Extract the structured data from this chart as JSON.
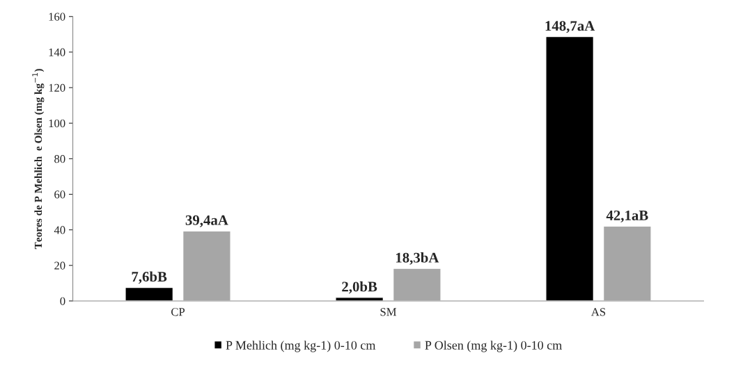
{
  "chart_data": {
    "type": "bar",
    "ylabel": "Teores de P Mehlich  e Olsen (mg kg$^{−1}$)",
    "categories": [
      "CP",
      "SM",
      "AS"
    ],
    "series": [
      {
        "name": "P Mehlich (mg kg-1) 0-10 cm",
        "color": "#000000",
        "values": [
          7.6,
          2.0,
          148.7
        ],
        "value_labels": [
          "7,6bB",
          "2,0bB",
          "148,7aA"
        ]
      },
      {
        "name": "P Olsen (mg kg-1) 0-10 cm",
        "color": "#a6a6a6",
        "values": [
          39.4,
          18.3,
          42.1
        ],
        "value_labels": [
          "39,4aA",
          "18,3bA",
          "42,1aB"
        ]
      }
    ],
    "ylim": [
      0,
      160
    ],
    "yticks": [
      0,
      20,
      40,
      60,
      80,
      100,
      120,
      140,
      160
    ],
    "legend": "bottom"
  }
}
